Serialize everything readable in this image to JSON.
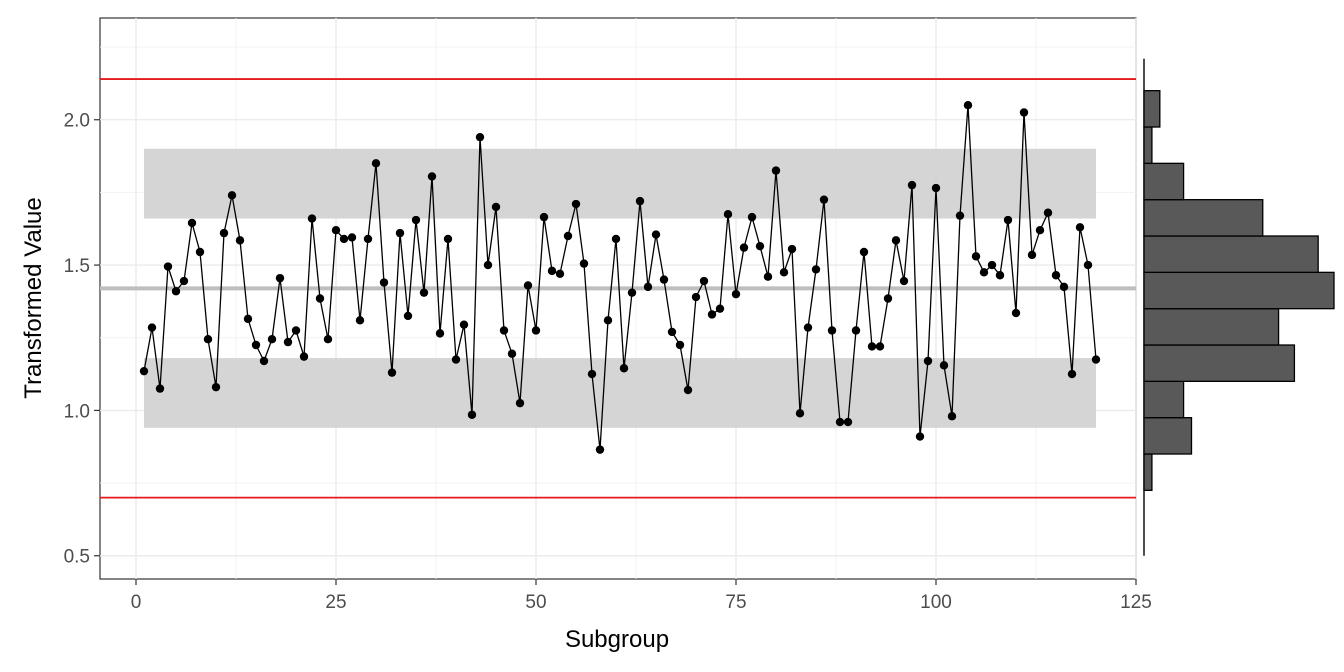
{
  "chart_data": {
    "type": "line",
    "title": "",
    "xlabel": "Subgroup",
    "ylabel": "Transformed Value",
    "xlim": [
      -4.5,
      125
    ],
    "ylim": [
      0.42,
      2.35
    ],
    "x_ticks": [
      0,
      25,
      50,
      75,
      100,
      125
    ],
    "y_ticks": [
      0.5,
      1.0,
      1.5,
      2.0
    ],
    "x_tick_labels": [
      "0",
      "25",
      "50",
      "75",
      "100",
      "125"
    ],
    "y_tick_labels": [
      "0.5",
      "1.0",
      "1.5",
      "2.0"
    ],
    "grid": true,
    "legend": "none",
    "center_line": 1.42,
    "control_limits": {
      "upper": 2.14,
      "lower": 0.7
    },
    "shaded_bands": [
      {
        "x": [
          1,
          120
        ],
        "y": [
          1.66,
          1.9
        ]
      },
      {
        "x": [
          1,
          120
        ],
        "y": [
          0.94,
          1.18
        ]
      }
    ],
    "series": [
      {
        "x": [
          1,
          2,
          3,
          4,
          5,
          6,
          7,
          8,
          9,
          10,
          11,
          12,
          13,
          14,
          15,
          16,
          17,
          18,
          19,
          20,
          21,
          22,
          23,
          24,
          25,
          26,
          27,
          28,
          29,
          30,
          31,
          32,
          33,
          34,
          35,
          36,
          37,
          38,
          39,
          40,
          41,
          42,
          43,
          44,
          45,
          46,
          47,
          48,
          49,
          50,
          51,
          52,
          53,
          54,
          55,
          56,
          57,
          58,
          59,
          60,
          61,
          62,
          63,
          64,
          65,
          66,
          67,
          68,
          69,
          70,
          71,
          72,
          73,
          74,
          75,
          76,
          77,
          78,
          79,
          80,
          81,
          82,
          83,
          84,
          85,
          86,
          87,
          88,
          89,
          90,
          91,
          92,
          93,
          94,
          95,
          96,
          97,
          98,
          99,
          100,
          101,
          102,
          103,
          104,
          105,
          106,
          107,
          108,
          109,
          110,
          111,
          112,
          113,
          114,
          115,
          116,
          117,
          118,
          119,
          120
        ],
        "values": [
          1.135,
          1.285,
          1.075,
          1.495,
          1.41,
          1.445,
          1.645,
          1.545,
          1.245,
          1.08,
          1.61,
          1.74,
          1.585,
          1.315,
          1.225,
          1.17,
          1.245,
          1.455,
          1.235,
          1.275,
          1.185,
          1.66,
          1.385,
          1.245,
          1.62,
          1.59,
          1.595,
          1.31,
          1.59,
          1.85,
          1.44,
          1.13,
          1.61,
          1.325,
          1.655,
          1.405,
          1.805,
          1.265,
          1.59,
          1.175,
          1.295,
          0.985,
          1.94,
          1.5,
          1.7,
          1.275,
          1.195,
          1.025,
          1.43,
          1.275,
          1.665,
          1.48,
          1.47,
          1.6,
          1.71,
          1.505,
          1.125,
          0.865,
          1.31,
          1.59,
          1.145,
          1.405,
          1.72,
          1.425,
          1.605,
          1.45,
          1.27,
          1.225,
          1.07,
          1.39,
          1.445,
          1.33,
          1.35,
          1.675,
          1.4,
          1.56,
          1.665,
          1.565,
          1.46,
          1.825,
          1.475,
          1.555,
          0.99,
          1.285,
          1.485,
          1.725,
          1.275,
          0.96,
          0.96,
          1.275,
          1.545,
          1.22,
          1.22,
          1.385,
          1.585,
          1.445,
          1.775,
          0.91,
          1.17,
          1.765,
          1.155,
          0.98,
          1.67,
          2.05,
          1.53,
          1.475,
          1.5,
          1.465,
          1.655,
          1.335,
          2.025,
          1.535,
          1.62,
          1.68,
          1.465,
          1.425,
          1.125,
          1.63,
          1.5,
          1.175
        ]
      }
    ],
    "histogram": {
      "bin_edges": [
        0.725,
        0.85,
        0.975,
        1.1,
        1.225,
        1.35,
        1.475,
        1.6,
        1.725,
        1.85,
        1.975,
        2.1
      ],
      "counts": [
        1,
        6,
        5,
        19,
        17,
        24,
        22,
        15,
        5,
        1,
        2
      ]
    }
  }
}
